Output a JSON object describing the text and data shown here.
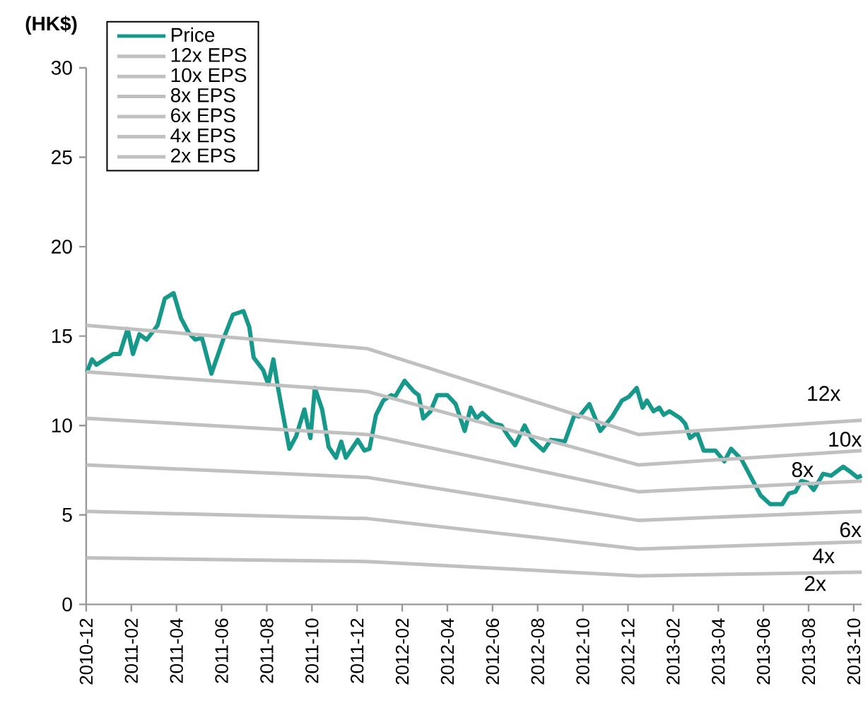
{
  "chart_data": {
    "type": "line",
    "ylabel": "(HK$)",
    "xlim": [
      "2010-12",
      "2013-10-12"
    ],
    "xticks": [
      "2010-12",
      "2011-02",
      "2011-04",
      "2011-06",
      "2011-08",
      "2011-10",
      "2011-12",
      "2012-02",
      "2012-04",
      "2012-06",
      "2012-08",
      "2012-10",
      "2012-12",
      "2013-02",
      "2013-04",
      "2013-06",
      "2013-08",
      "2013-10"
    ],
    "ylim": [
      0,
      30
    ],
    "yticks": [
      0,
      5,
      10,
      15,
      20,
      25,
      30
    ],
    "grid": false,
    "legend": "top left",
    "marker": "none",
    "line_style": "solid",
    "series": [
      {
        "name": "Price",
        "color": "#16998a",
        "x": [
          "2010-12-02",
          "2010-12-09",
          "2010-12-15",
          "2011-01-07",
          "2011-01-16",
          "2011-01-27",
          "2011-02-03",
          "2011-02-11",
          "2011-02-20",
          "2011-03-06",
          "2011-03-16",
          "2011-03-28",
          "2011-04-07",
          "2011-04-17",
          "2011-04-26",
          "2011-05-05",
          "2011-05-18",
          "2011-06-03",
          "2011-06-16",
          "2011-06-30",
          "2011-07-08",
          "2011-07-14",
          "2011-07-27",
          "2011-08-03",
          "2011-08-10",
          "2011-08-16",
          "2011-09-01",
          "2011-09-10",
          "2011-09-21",
          "2011-09-29",
          "2011-10-05",
          "2011-10-15",
          "2011-10-24",
          "2011-11-03",
          "2011-11-10",
          "2011-11-16",
          "2011-12-02",
          "2011-12-11",
          "2011-12-18",
          "2011-12-27",
          "2012-01-06",
          "2012-01-17",
          "2012-01-22",
          "2012-02-04",
          "2012-02-16",
          "2012-02-22",
          "2012-02-28",
          "2012-03-09",
          "2012-03-18",
          "2012-04-01",
          "2012-04-12",
          "2012-04-24",
          "2012-05-02",
          "2012-05-10",
          "2012-05-18",
          "2012-06-03",
          "2012-06-13",
          "2012-06-22",
          "2012-07-01",
          "2012-07-14",
          "2012-07-24",
          "2012-08-09",
          "2012-08-19",
          "2012-09-07",
          "2012-09-20",
          "2012-09-26",
          "2012-10-10",
          "2012-10-25",
          "2012-11-10",
          "2012-11-23",
          "2012-12-02",
          "2012-12-13",
          "2012-12-21",
          "2012-12-27",
          "2013-01-05",
          "2013-01-13",
          "2013-01-19",
          "2013-01-27",
          "2013-02-10",
          "2013-02-16",
          "2013-02-22",
          "2013-03-03",
          "2013-03-12",
          "2013-03-28",
          "2013-04-09",
          "2013-04-18",
          "2013-05-02",
          "2013-05-15",
          "2013-05-28",
          "2013-06-10",
          "2013-06-26",
          "2013-07-05",
          "2013-07-14",
          "2013-07-22",
          "2013-07-31",
          "2013-08-08",
          "2013-08-21",
          "2013-09-01",
          "2013-09-17",
          "2013-09-27",
          "2013-10-06",
          "2013-10-12"
        ],
        "values": [
          13.0,
          13.7,
          13.4,
          14.0,
          14.0,
          15.4,
          14.0,
          15.1,
          14.8,
          15.6,
          17.1,
          17.4,
          16.0,
          15.2,
          14.8,
          14.9,
          12.9,
          14.8,
          16.2,
          16.4,
          15.5,
          13.8,
          13.1,
          12.3,
          13.7,
          12.2,
          8.7,
          9.4,
          10.9,
          9.3,
          12.1,
          10.9,
          8.8,
          8.2,
          9.1,
          8.2,
          9.2,
          8.6,
          8.7,
          10.6,
          11.4,
          11.7,
          11.6,
          12.5,
          11.9,
          11.7,
          10.4,
          10.8,
          11.7,
          11.7,
          11.2,
          9.7,
          11.0,
          10.4,
          10.7,
          10.1,
          10.0,
          9.4,
          8.9,
          10.0,
          9.2,
          8.6,
          9.2,
          9.1,
          10.6,
          10.5,
          11.2,
          9.7,
          10.5,
          11.4,
          11.6,
          12.1,
          11.0,
          11.4,
          10.8,
          11.0,
          10.6,
          10.8,
          10.4,
          10.1,
          9.3,
          9.6,
          8.6,
          8.6,
          8.0,
          8.7,
          8.1,
          7.1,
          6.1,
          5.6,
          5.6,
          6.2,
          6.3,
          6.9,
          6.8,
          6.4,
          7.3,
          7.2,
          7.7,
          7.4,
          7.1,
          7.2
        ]
      },
      {
        "name": "12x EPS",
        "color": "#c0c0c0",
        "x": [
          "2010-12",
          "2011-12-15",
          "2012-12-15",
          "2013-10-12"
        ],
        "values": [
          15.6,
          14.3,
          9.5,
          10.3
        ]
      },
      {
        "name": "10x EPS",
        "color": "#c0c0c0",
        "x": [
          "2010-12",
          "2011-12-15",
          "2012-12-15",
          "2013-10-12"
        ],
        "values": [
          13.0,
          11.9,
          7.8,
          8.6
        ]
      },
      {
        "name": "8x EPS",
        "color": "#c0c0c0",
        "x": [
          "2010-12",
          "2011-12-15",
          "2012-12-15",
          "2013-10-12"
        ],
        "values": [
          10.4,
          9.5,
          6.3,
          6.9
        ]
      },
      {
        "name": "6x EPS",
        "color": "#c0c0c0",
        "x": [
          "2010-12",
          "2011-12-15",
          "2012-12-15",
          "2013-10-12"
        ],
        "values": [
          7.8,
          7.1,
          4.7,
          5.2
        ]
      },
      {
        "name": "4x EPS",
        "color": "#c0c0c0",
        "x": [
          "2010-12",
          "2011-12-15",
          "2012-12-15",
          "2013-10-12"
        ],
        "values": [
          5.2,
          4.8,
          3.1,
          3.5
        ]
      },
      {
        "name": "2x EPS",
        "color": "#c0c0c0",
        "x": [
          "2010-12",
          "2011-12-15",
          "2012-12-15",
          "2013-10-12"
        ],
        "values": [
          2.6,
          2.4,
          1.6,
          1.8
        ]
      }
    ],
    "annotations": [
      "12x",
      "10x",
      "8x",
      "6x",
      "4x",
      "2x"
    ]
  }
}
